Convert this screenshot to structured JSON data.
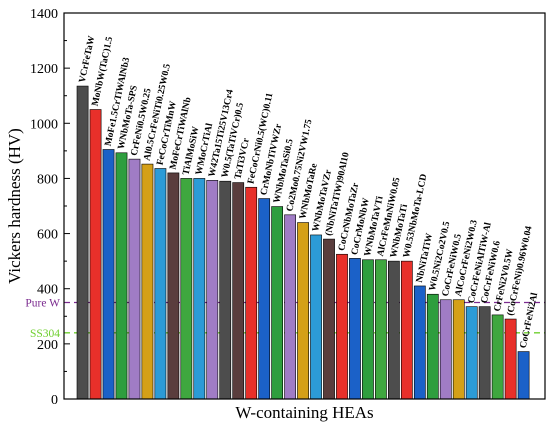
{
  "chart_data": {
    "type": "bar",
    "xlabel": "W-containing HEAs",
    "ylabel": "Vickers hardness (HV)",
    "ylim": [
      0,
      1400
    ],
    "yticks": [
      0,
      200,
      400,
      600,
      800,
      1000,
      1200,
      1400
    ],
    "grid": false,
    "categories": [
      "VCrFeTaW",
      "MoNbW(TaC)1.5",
      "MoFe1.5CrTiWAlNb3",
      "WNbMoTa-SPS",
      "CrFeNi0.5W0.25",
      "Al0.5CrFeNiTi0.25W0.5",
      "FeCoCrTiMnW",
      "MoFeCrTiWAlNb",
      "TiAlMoSiW",
      "WMoCrTiAl",
      "W42Ta15Ti25V13Cr4",
      "W0.5(TaTiVCr)0.5",
      "TaTi3VCr",
      "FeCoCrNi0.5(WC)0.11",
      "CrMoNbTiVWZr",
      "WNbMoTaSi0.5",
      "Co2Mo0.75Ni2VW1.75",
      "WNbMoTaRe",
      "WNbMoTaVZr",
      "(NbNiTaTiW)90Al10",
      "CoCrNbMoTaZr",
      "CoCrMoNbW",
      "WNbMoTaVTi",
      "AlCrFeMnNiW0.05",
      "WNbMoTaTi",
      "W0.53NbMoTa-LCD",
      "NbNiTaTiW",
      "W0.5Ni2Co2V0.5",
      "CoCrFeNiW0.5",
      "AlCoCrFeNi2W0.3",
      "CoCrFeNiAlTiW-Al",
      "CoCrFeNiW0.6",
      "CrFeNi2V0.5W",
      "(CoCrFeNi)0.96W0.04",
      "CoCrFeNi2Al"
    ],
    "values": [
      1135,
      1050,
      905,
      893,
      870,
      852,
      836,
      820,
      800,
      800,
      793,
      790,
      785,
      768,
      727,
      698,
      668,
      640,
      595,
      580,
      525,
      510,
      505,
      505,
      500,
      500,
      410,
      380,
      360,
      360,
      335,
      335,
      305,
      290,
      172
    ],
    "colors": [
      "#4d4d4d",
      "#e8302a",
      "#1b61c8",
      "#2e9e3e",
      "#a07cc5",
      "#d4a017",
      "#2c9bd6",
      "#5a3d3d",
      "#3fa73f",
      "#2c9bd6",
      "#a07cc5",
      "#4d4d4d",
      "#5a3d3d",
      "#e8302a",
      "#1b61c8",
      "#2e9e3e",
      "#a07cc5",
      "#d4a017",
      "#2c9bd6",
      "#5a3d3d",
      "#e8302a",
      "#1b61c8",
      "#2e9e3e",
      "#3fa73f",
      "#4d4d4d",
      "#e8302a",
      "#1b61c8",
      "#2e9e3e",
      "#a07cc5",
      "#d4a017",
      "#2c9bd6",
      "#4d4d4d",
      "#3fa73f",
      "#e8302a",
      "#1b61c8"
    ],
    "reference_lines": [
      {
        "name": "Pure W",
        "value": 350,
        "color": "#7b2b8f",
        "style": "dashed"
      },
      {
        "name": "SS304",
        "value": 240,
        "color": "#6fcf2f",
        "style": "dashed"
      }
    ]
  }
}
